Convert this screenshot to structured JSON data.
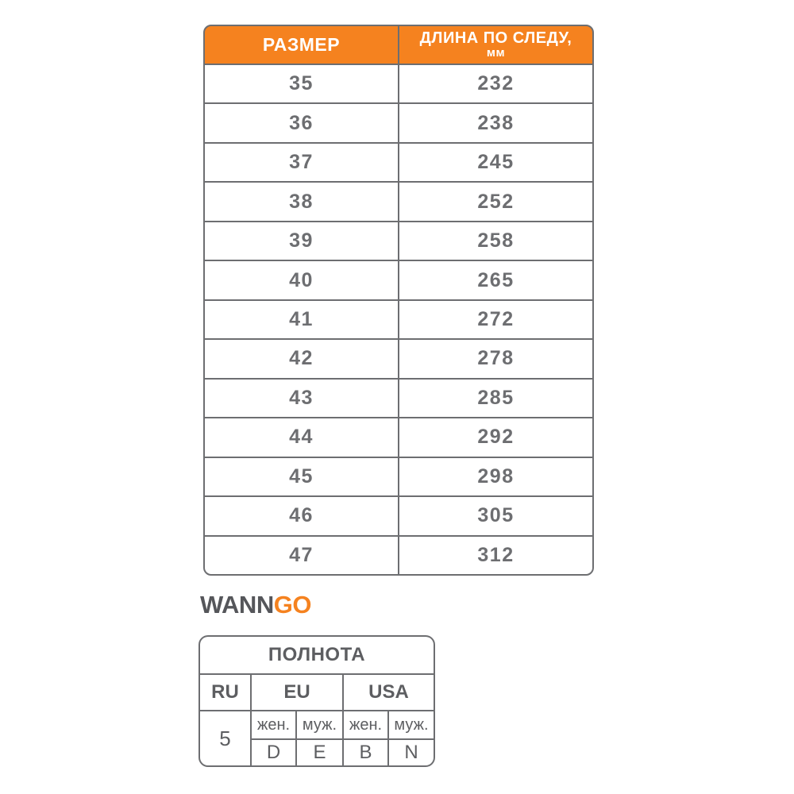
{
  "colors": {
    "orange": "#F5821F",
    "table_gray": "#6D6E71",
    "logo_gray": "#55565A",
    "background": "#FFFFFF"
  },
  "size_table": {
    "header": {
      "col1": "РАЗМЕР",
      "col2_line1": "ДЛИНА ПО СЛЕДУ,",
      "col2_line2": "мм"
    },
    "rows": [
      {
        "size": "35",
        "length": "232"
      },
      {
        "size": "36",
        "length": "238"
      },
      {
        "size": "37",
        "length": "245"
      },
      {
        "size": "38",
        "length": "252"
      },
      {
        "size": "39",
        "length": "258"
      },
      {
        "size": "40",
        "length": "265"
      },
      {
        "size": "41",
        "length": "272"
      },
      {
        "size": "42",
        "length": "278"
      },
      {
        "size": "43",
        "length": "285"
      },
      {
        "size": "44",
        "length": "292"
      },
      {
        "size": "45",
        "length": "298"
      },
      {
        "size": "46",
        "length": "305"
      },
      {
        "size": "47",
        "length": "312"
      }
    ]
  },
  "logo": {
    "text_gray": "WANN",
    "text_orange": "GO"
  },
  "fullness_table": {
    "title": "ПОЛНОТА",
    "col_ru": "RU",
    "col_eu": "EU",
    "col_usa": "USA",
    "ru_value": "5",
    "eu_women_label": "жен.",
    "eu_men_label": "муж.",
    "usa_women_label": "жен.",
    "usa_men_label": "муж.",
    "eu_women_value": "D",
    "eu_men_value": "E",
    "usa_women_value": "B",
    "usa_men_value": "N"
  }
}
